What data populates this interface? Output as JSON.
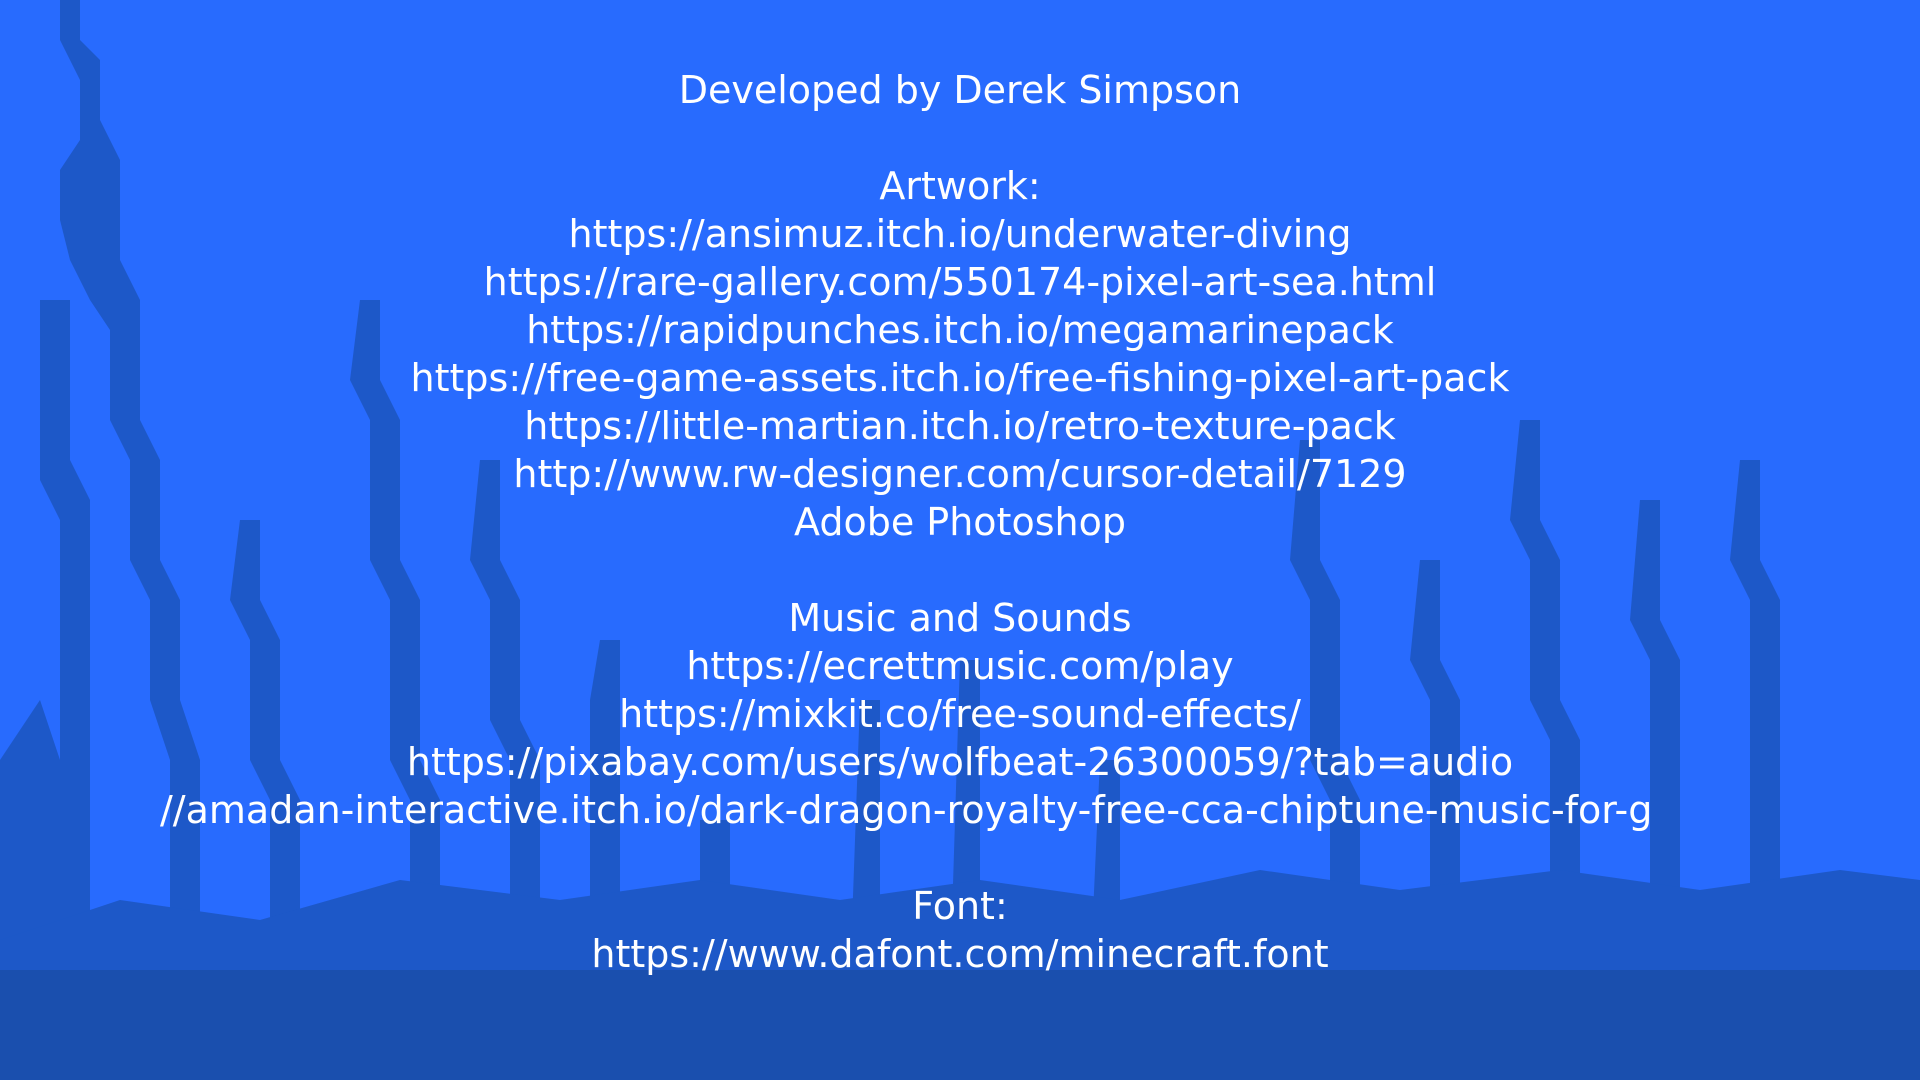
{
  "colors": {
    "background": "#286bfe",
    "foreground_dark": "#1a56b8",
    "text": "#ffffff"
  },
  "credits": {
    "developer": "Developed by Derek Simpson",
    "artwork": {
      "heading": "Artwork:",
      "items": [
        "https://ansimuz.itch.io/underwater-diving",
        "https://rare-gallery.com/550174-pixel-art-sea.html",
        "https://rapidpunches.itch.io/megamarinepack",
        "https://free-game-assets.itch.io/free-fishing-pixel-art-pack",
        "https://little-martian.itch.io/retro-texture-pack",
        "http://www.rw-designer.com/cursor-detail/7129",
        "Adobe Photoshop"
      ]
    },
    "music": {
      "heading": "Music and Sounds",
      "items": [
        "https://ecrettmusic.com/play",
        "https://mixkit.co/free-sound-effects/",
        "https://pixabay.com/users/wolfbeat-26300059/?tab=audio",
        "//amadan-interactive.itch.io/dark-dragon-royalty-free-cca-chiptune-music-for-g"
      ]
    },
    "font": {
      "heading": "Font:",
      "items": [
        "https://www.dafont.com/minecraft.font"
      ]
    }
  }
}
